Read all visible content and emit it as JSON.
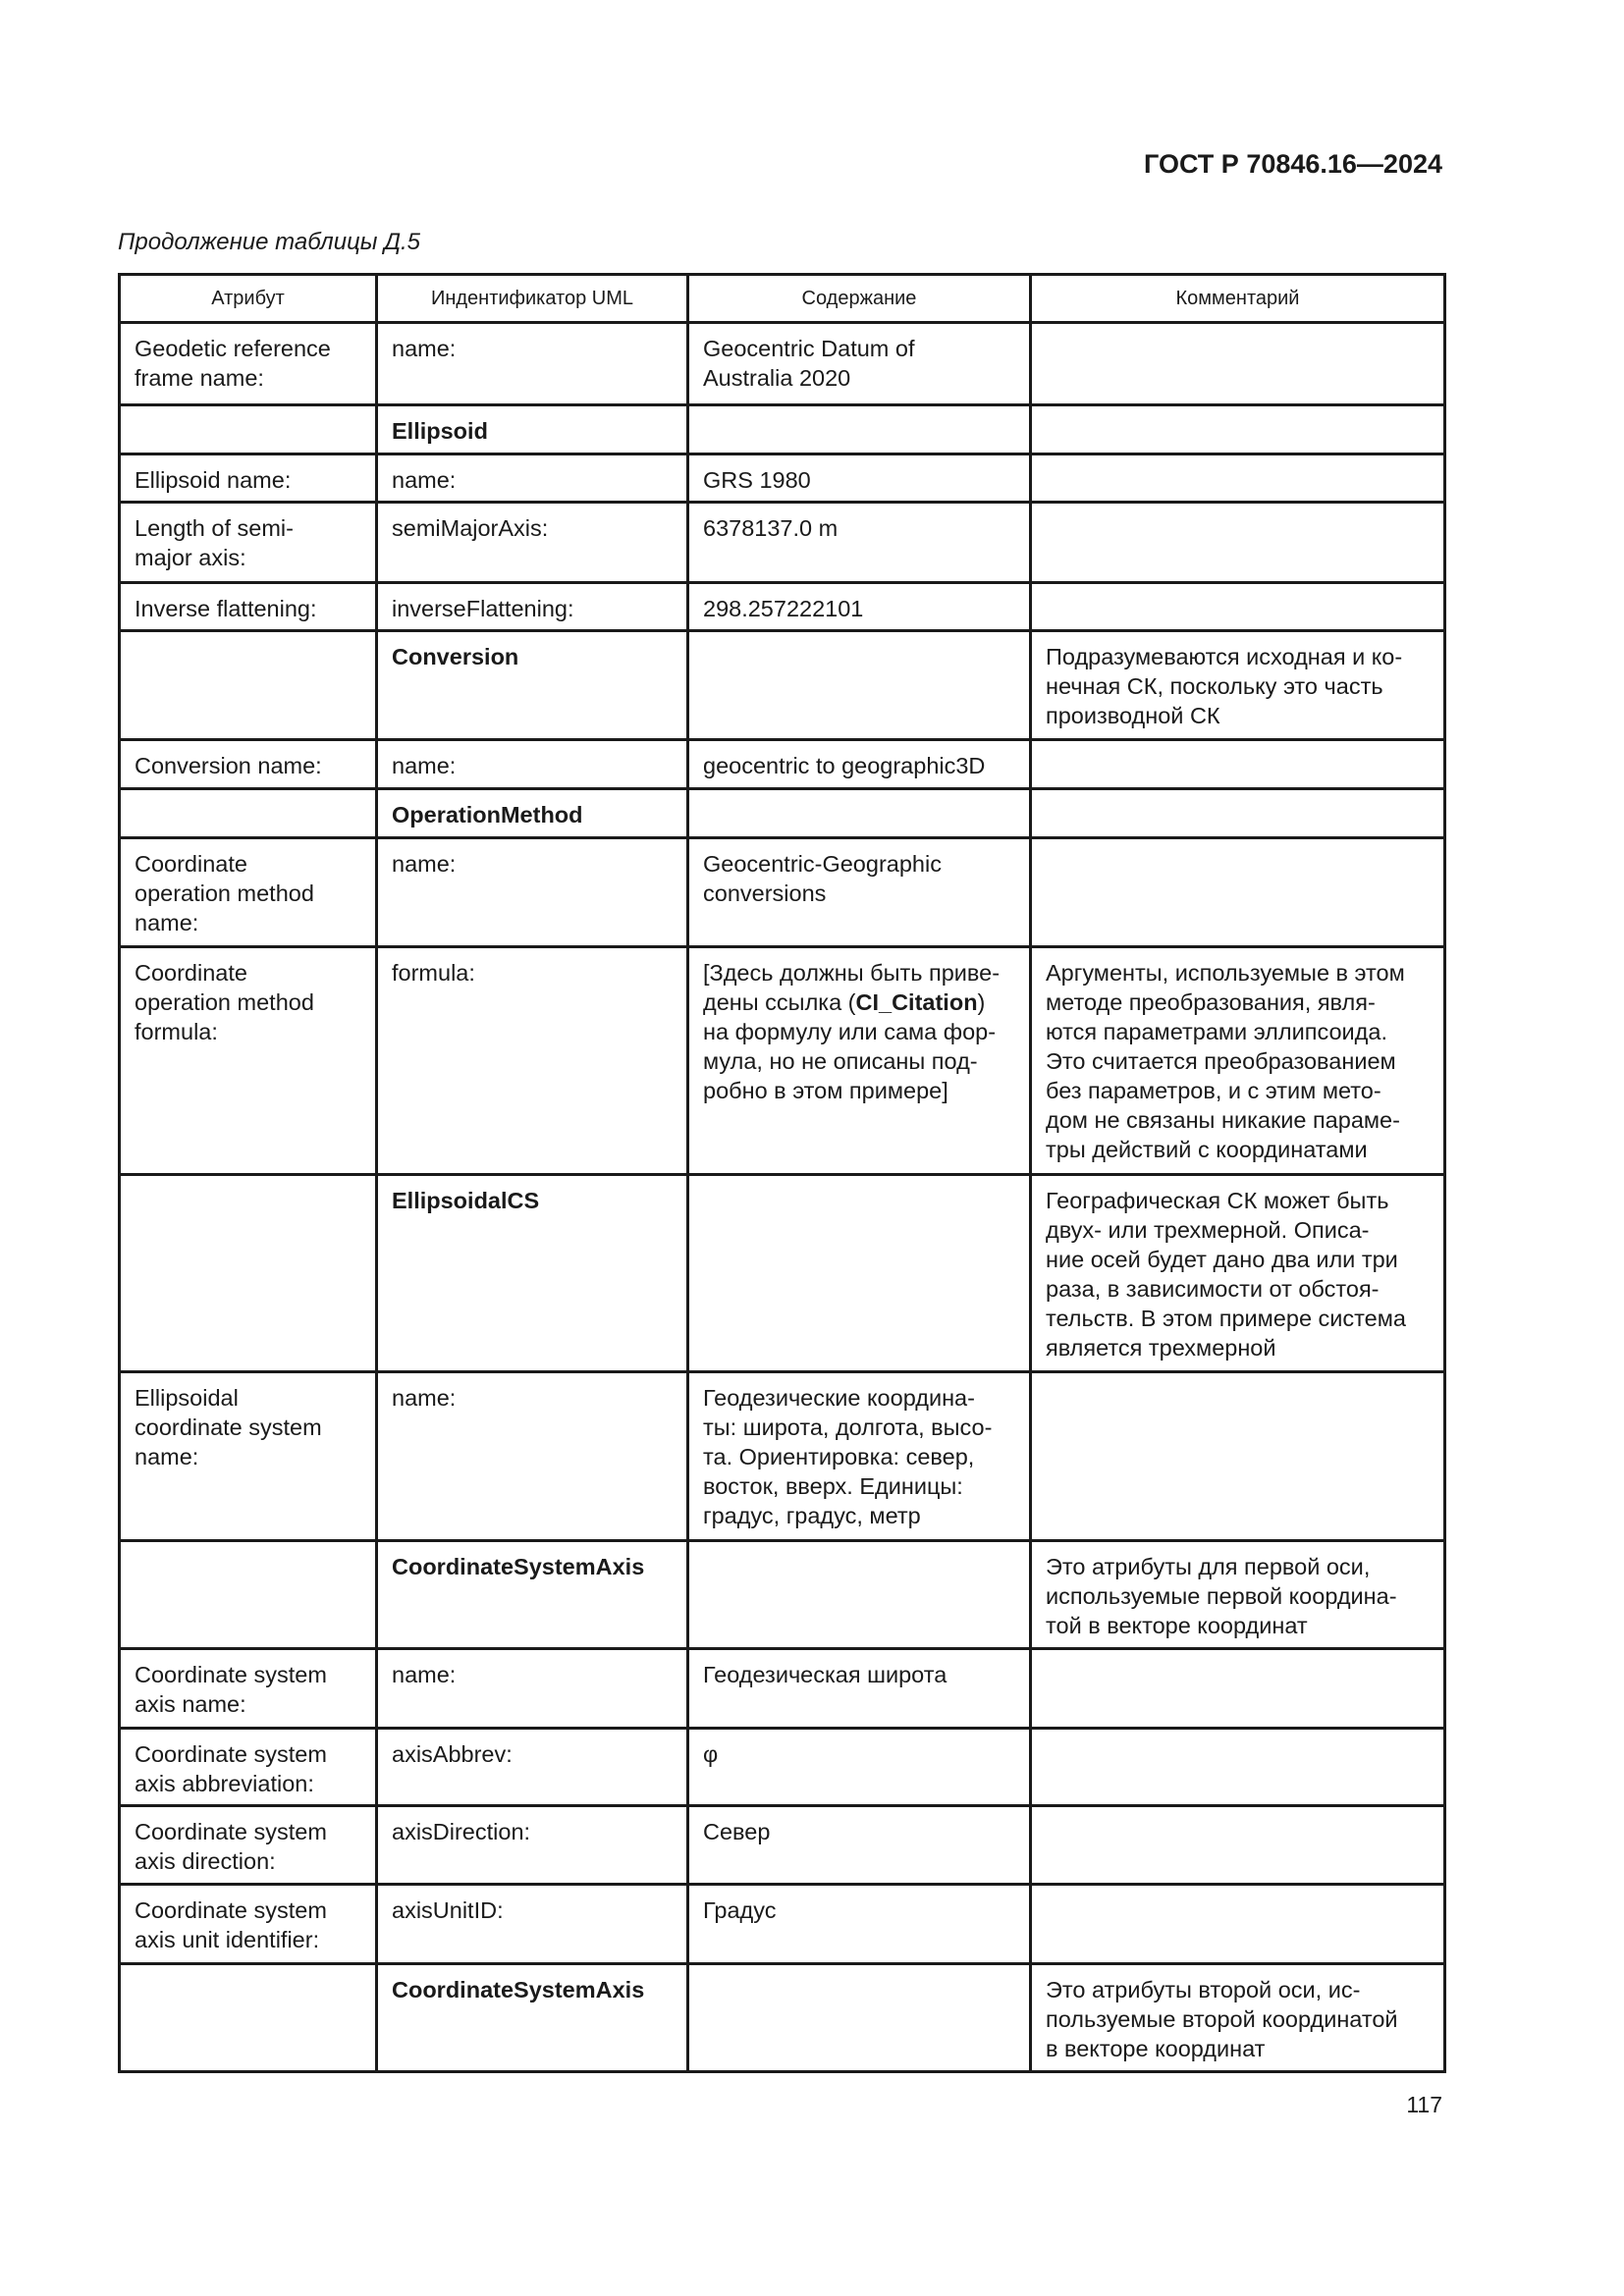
{
  "header": {
    "doc_id": "ГОСТ Р 70846.16—2024",
    "caption": "Продолжение таблицы Д.5",
    "page_number": "117"
  },
  "table": {
    "columns": [
      "Атрибут",
      "Индентификатор UML",
      "Содержание",
      "Комментарий"
    ],
    "rows": [
      {
        "attr": "Geodetic reference\nframe name:",
        "uml": "name:",
        "content": "Geocentric Datum of\nAustralia 2020",
        "comment": ""
      },
      {
        "attr": "",
        "uml": "Ellipsoid",
        "uml_bold": true,
        "content": "",
        "comment": ""
      },
      {
        "attr": "Ellipsoid name:",
        "uml": "name:",
        "content": "GRS 1980",
        "comment": ""
      },
      {
        "attr": "Length of semi-\nmajor axis:",
        "uml": "semiMajorAxis:",
        "content": "6378137.0 m",
        "comment": ""
      },
      {
        "attr": "Inverse flattening:",
        "uml": "inverseFlattening:",
        "content": "298.257222101",
        "comment": ""
      },
      {
        "attr": "",
        "uml": "Conversion",
        "uml_bold": true,
        "content": "",
        "comment": "Подразумеваются исходная и ко-\nнечная СК, поскольку это часть\nпроизводной СК"
      },
      {
        "attr": "Conversion name:",
        "uml": "name:",
        "content": "geocentric to geographic3D",
        "comment": ""
      },
      {
        "attr": "",
        "uml": "OperationMethod",
        "uml_bold": true,
        "content": "",
        "comment": ""
      },
      {
        "attr": "Coordinate\noperation method\nname:",
        "uml": "name:",
        "content": "Geocentric-Geographic\nconversions",
        "comment": ""
      },
      {
        "attr": "Coordinate\noperation method\nformula:",
        "uml": "formula:",
        "content_parts": {
          "pre": "[Здесь должны быть приве-\nдены ссылка (",
          "bold": "CI_Citation",
          "post": ")\nна формулу или сама фор-\nмула, но не описаны под-\nробно в этом примере]"
        },
        "comment": "Аргументы, используемые в этом\nметоде преобразования, явля-\nются параметрами эллипсоида.\nЭто считается преобразованием\nбез параметров, и с этим мето-\nдом не связаны никакие параме-\nтры действий с координатами"
      },
      {
        "attr": "",
        "uml": "EllipsoidalCS",
        "uml_bold": true,
        "content": "",
        "comment": "Географическая СК может быть\nдвух- или трехмерной. Описа-\nние осей будет дано два или три\nраза, в зависимости от обстоя-\nтельств. В этом примере система\nявляется трехмерной"
      },
      {
        "attr": "Ellipsoidal\ncoordinate system\nname:",
        "uml": "name:",
        "content": "Геодезические координа-\nты: широта, долгота, высо-\nта. Ориентировка: север,\nвосток, вверх. Единицы:\nградус, градус, метр",
        "comment": ""
      },
      {
        "attr": "",
        "uml": "CoordinateSystemAxis",
        "uml_bold": true,
        "content": "",
        "comment": "Это атрибуты для первой оси,\nиспользуемые первой координа-\nтой в векторе координат"
      },
      {
        "attr": "Coordinate system\naxis name:",
        "uml": "name:",
        "content": "Геодезическая широта",
        "comment": ""
      },
      {
        "attr": "Coordinate system\naxis abbreviation:",
        "uml": "axisAbbrev:",
        "content": "φ",
        "comment": ""
      },
      {
        "attr": "Coordinate system\naxis direction:",
        "uml": "axisDirection:",
        "content": "Север",
        "comment": ""
      },
      {
        "attr": "Coordinate system\naxis unit identifier:",
        "uml": "axisUnitID:",
        "content": "Градус",
        "comment": ""
      },
      {
        "attr": "",
        "uml": "CoordinateSystemAxis",
        "uml_bold": true,
        "content": "",
        "comment": "Это атрибуты второй оси, ис-\nпользуемые второй координатой\nв векторе координат"
      }
    ]
  }
}
